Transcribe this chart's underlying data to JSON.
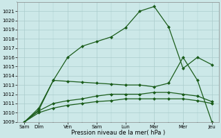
{
  "xlabel": "Pression niveau de la mer( hPa )",
  "background_color": "#cce8e8",
  "grid_color": "#aacccc",
  "line_color": "#1a5c1a",
  "ylim": [
    1009,
    1022
  ],
  "yticks": [
    1009,
    1010,
    1011,
    1012,
    1013,
    1014,
    1015,
    1016,
    1017,
    1018,
    1019,
    1020,
    1021
  ],
  "x_tick_positions": [
    0,
    2,
    6,
    10,
    14,
    18,
    22,
    26
  ],
  "x_labels": [
    "Sam",
    "Dim",
    "Ven",
    "Sam",
    "Lun",
    "Mar",
    "Mer",
    "Jeu"
  ],
  "xlim": [
    -1,
    27
  ],
  "s1x": [
    0,
    2,
    4,
    6,
    8,
    10,
    12,
    14,
    16,
    18,
    20,
    22,
    24,
    26
  ],
  "s1y": [
    1009,
    1010.5,
    1013.5,
    1016.0,
    1017.2,
    1017.7,
    1018.2,
    1019.2,
    1021.0,
    1021.5,
    1019.3,
    1014.8,
    1016.0,
    1015.2
  ],
  "s2x": [
    0,
    2,
    4,
    6,
    8,
    10,
    12,
    14,
    16,
    18,
    20,
    22,
    24,
    26
  ],
  "s2y": [
    1009,
    1010.3,
    1013.5,
    1013.4,
    1013.3,
    1013.2,
    1013.1,
    1013.0,
    1013.0,
    1012.8,
    1013.2,
    1016.0,
    1013.5,
    1009.0
  ],
  "s3x": [
    0,
    2,
    4,
    6,
    8,
    10,
    12,
    14,
    16,
    18,
    20,
    22,
    24,
    26
  ],
  "s3y": [
    1009,
    1010.2,
    1011.0,
    1011.3,
    1011.5,
    1011.8,
    1012.0,
    1012.0,
    1012.0,
    1012.2,
    1012.2,
    1012.0,
    1011.8,
    1011.2
  ],
  "s4x": [
    0,
    2,
    4,
    6,
    8,
    10,
    12,
    14,
    16,
    18,
    20,
    22,
    24,
    26
  ],
  "s4y": [
    1009,
    1010.0,
    1010.5,
    1010.8,
    1011.0,
    1011.2,
    1011.3,
    1011.5,
    1011.5,
    1011.5,
    1011.5,
    1011.5,
    1011.3,
    1011.0
  ],
  "marker_size": 2.5,
  "line_width": 0.9,
  "tick_fontsize": 5,
  "xlabel_fontsize": 6
}
